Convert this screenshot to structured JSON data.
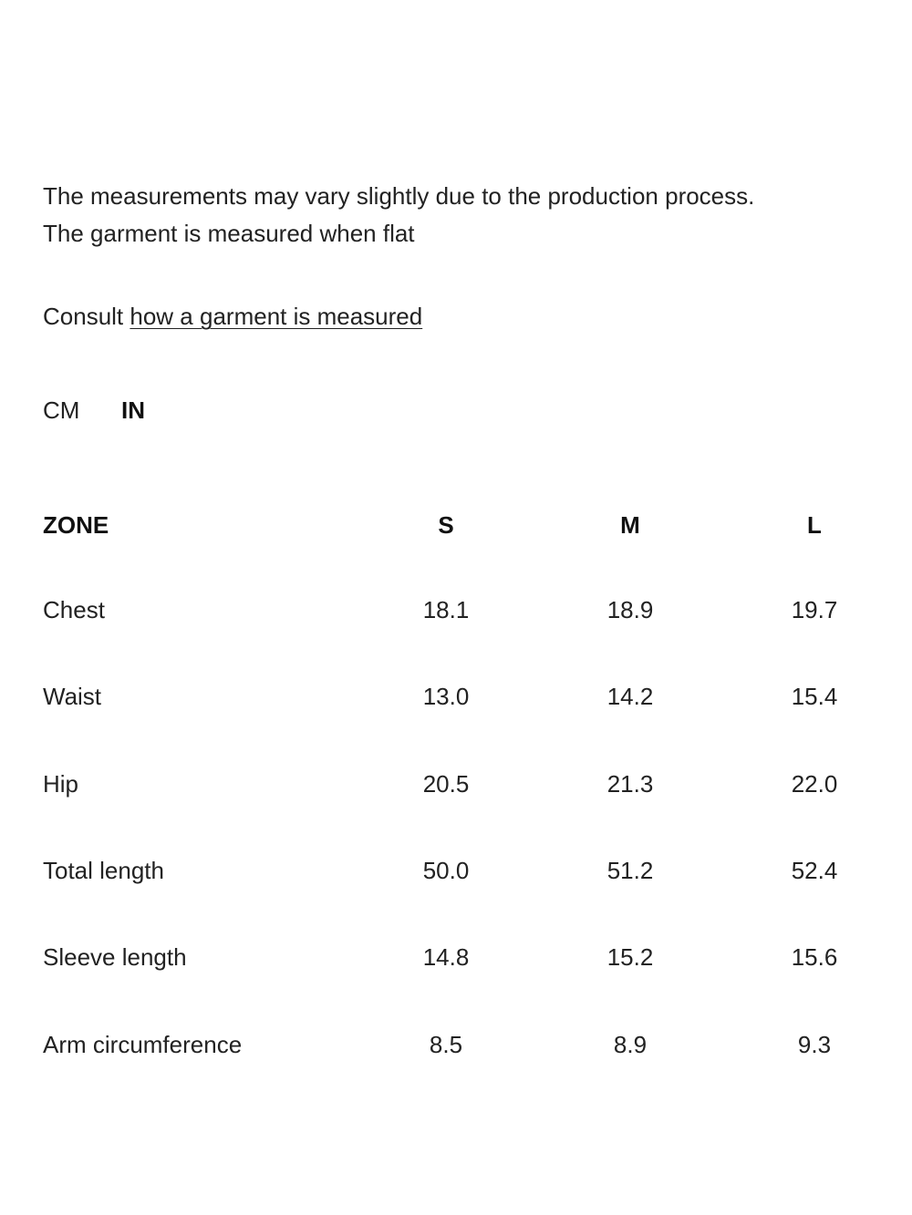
{
  "intro": {
    "lines": [
      "The measurements may vary slightly due to the production process.",
      "The garment is measured when flat"
    ]
  },
  "consult": {
    "text": "Consult",
    "link": "how a garment is measured"
  },
  "units": [
    "CM",
    "IN"
  ],
  "table": {
    "header": [
      "ZONE",
      "S",
      "M",
      "L"
    ],
    "rows": [
      [
        "Chest",
        "18.1",
        "18.9",
        "19.7"
      ],
      [
        "Waist",
        "13.0",
        "14.2",
        "15.4"
      ],
      [
        "Hip",
        "20.5",
        "21.3",
        "22.0"
      ],
      [
        "Total length",
        "50.0",
        "51.2",
        "52.4"
      ],
      [
        "Sleeve length",
        "14.8",
        "15.2",
        "15.6"
      ],
      [
        "Arm circumference",
        "8.5",
        "8.9",
        "9.3"
      ]
    ]
  }
}
